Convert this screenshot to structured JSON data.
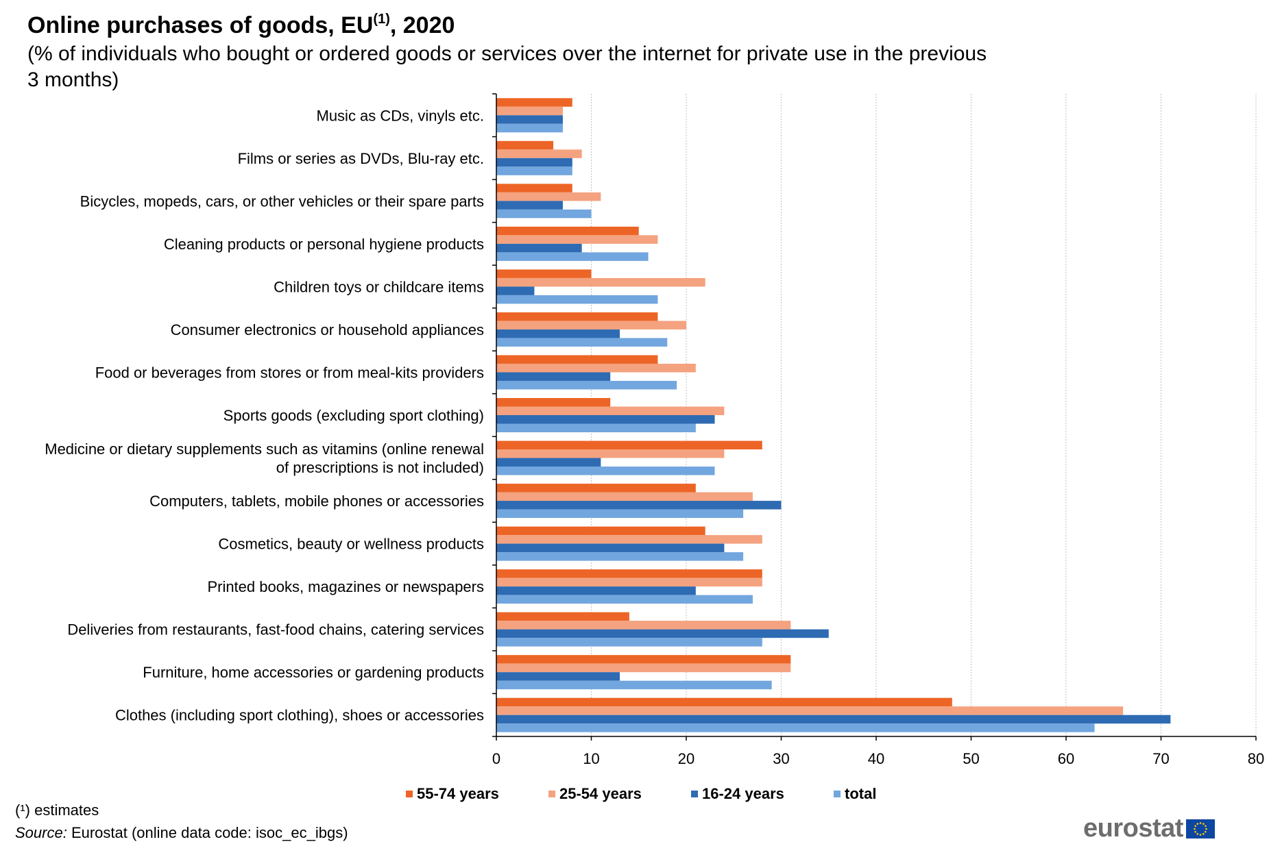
{
  "header": {
    "title_main": "Online purchases of goods, EU",
    "title_sup": "(1)",
    "title_end": ", 2020",
    "subtitle": "(% of individuals who bought or ordered goods or services over the internet for private use in the previous 3 months)"
  },
  "footer": {
    "footnote_sup": "(¹)",
    "footnote_text": " estimates",
    "source_label": "Source:",
    "source_text": " Eurostat (online data code: isoc_ec_ibgs)",
    "logo_text": "eurostat"
  },
  "colors": {
    "s1": "#ED6526",
    "s2": "#F4A27F",
    "s3": "#2E6BB3",
    "s4": "#72A6DE",
    "grid": "#BFBFBF",
    "axis": "#000000"
  },
  "chart_data": {
    "type": "bar",
    "orientation": "horizontal",
    "categories": [
      "Music as CDs, vinyls etc.",
      "Films or series as DVDs, Blu-ray etc.",
      "Bicycles, mopeds, cars, or other vehicles or their spare parts",
      "Cleaning products or personal hygiene products",
      "Children toys or childcare items",
      "Consumer electronics or household appliances",
      "Food or beverages from stores or from meal-kits providers",
      "Sports goods (excluding sport clothing)",
      "Medicine or dietary supplements such as vitamins (online renewal of prescriptions is not included)",
      "Computers, tablets, mobile phones or accessories",
      "Cosmetics, beauty or wellness products",
      "Printed books, magazines or newspapers",
      "Deliveries from restaurants, fast-food chains, catering services",
      "Furniture, home accessories or gardening products",
      "Clothes (including sport clothing), shoes or accessories"
    ],
    "series": [
      {
        "name": "55-74 years",
        "values": [
          8,
          6,
          8,
          15,
          10,
          17,
          17,
          12,
          28,
          21,
          22,
          28,
          14,
          31,
          48
        ]
      },
      {
        "name": "25-54 years",
        "values": [
          7,
          9,
          11,
          17,
          22,
          20,
          21,
          24,
          24,
          27,
          28,
          28,
          31,
          31,
          66
        ]
      },
      {
        "name": "16-24 years",
        "values": [
          7,
          8,
          7,
          9,
          4,
          13,
          12,
          23,
          11,
          30,
          24,
          21,
          35,
          13,
          71
        ]
      },
      {
        "name": "total",
        "values": [
          7,
          8,
          10,
          16,
          17,
          18,
          19,
          21,
          23,
          26,
          26,
          27,
          28,
          29,
          63
        ]
      }
    ],
    "xlim": [
      0,
      80
    ],
    "xticks": [
      0,
      10,
      20,
      30,
      40,
      50,
      60,
      70,
      80
    ],
    "grid": true,
    "legend_position": "bottom"
  }
}
